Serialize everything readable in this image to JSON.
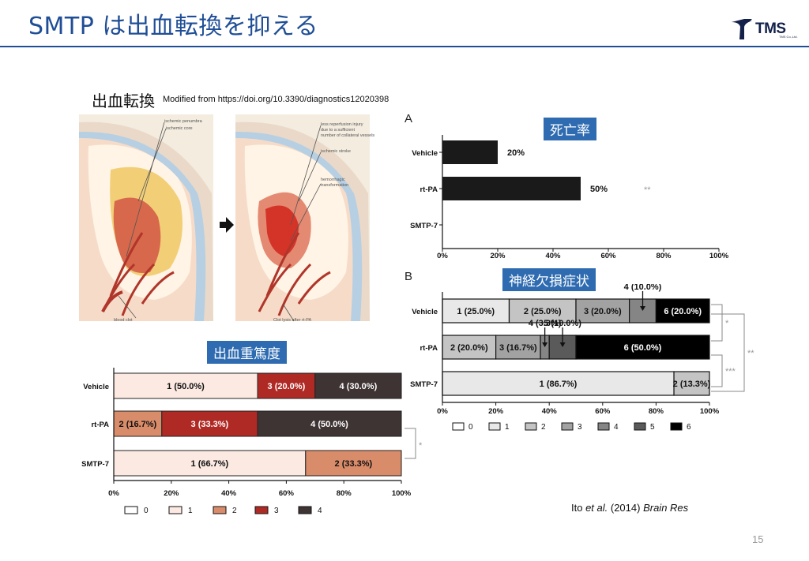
{
  "slide": {
    "title": "SMTP は出血転換を抑える",
    "logo_text": "TMS",
    "logo_subtext": "TMS Co.,Ltd.",
    "page_number": "15"
  },
  "source": {
    "heading": "出血転換",
    "text": "Modified from https://doi.org/10.3390/diagnostics12020398"
  },
  "illustration": {
    "left_labels": [
      "ischemic penumbra",
      "ischemic core",
      "blood clot"
    ],
    "right_labels": [
      "less reperfusion injury",
      "due to a sufficient",
      "number of collateral vessels",
      "ischemic stroke",
      "hemorrhagic",
      "transformation",
      "Clot lysis after rt-PA"
    ]
  },
  "tags": {
    "mortality": "死亡率",
    "neuro": "神経欠損症状",
    "severity": "出血重篤度"
  },
  "panel_letters": {
    "a": "A",
    "b": "B"
  },
  "citation": {
    "authors": "Ito ",
    "etal": "et al.",
    "year": " (2014) ",
    "journal": "Brain Res"
  },
  "chart_data": [
    {
      "id": "mortality",
      "type": "bar",
      "orientation": "horizontal",
      "panel": "A",
      "categories": [
        "Vehicle",
        "rt-PA",
        "SMTP-7"
      ],
      "values": [
        20,
        50,
        0
      ],
      "value_labels": [
        "20%",
        "50%",
        ""
      ],
      "xlim": [
        0,
        100
      ],
      "x_ticks": [
        "0%",
        "20%",
        "40%",
        "60%",
        "80%",
        "100%"
      ],
      "significance": [
        {
          "category": "rt-PA",
          "mark": "**"
        }
      ],
      "color": "#1a1a1a"
    },
    {
      "id": "neurological_deficit",
      "type": "bar",
      "stacked": true,
      "orientation": "horizontal",
      "panel": "B",
      "categories": [
        "Vehicle",
        "rt-PA",
        "SMTP-7"
      ],
      "segments": [
        [
          {
            "score": "1",
            "value": 25.0,
            "label": "1 (25.0%)"
          },
          {
            "score": "2",
            "value": 25.0,
            "label": "2 (25.0%)"
          },
          {
            "score": "3",
            "value": 20.0,
            "label": "3 (20.0%)"
          },
          {
            "score": "4",
            "value": 10.0,
            "label": "4 (10.0%)"
          },
          {
            "score": "6",
            "value": 20.0,
            "label": "6 (20.0%)"
          }
        ],
        [
          {
            "score": "2",
            "value": 20.0,
            "label": "2 (20.0%)"
          },
          {
            "score": "3",
            "value": 16.7,
            "label": "3 (16.7%)"
          },
          {
            "score": "4",
            "value": 3.3,
            "label": "4 (3.3%)"
          },
          {
            "score": "5",
            "value": 10.0,
            "label": "5 (10.0%)"
          },
          {
            "score": "6",
            "value": 50.0,
            "label": "6 (50.0%)"
          }
        ],
        [
          {
            "score": "1",
            "value": 86.7,
            "label": "1 (86.7%)"
          },
          {
            "score": "2",
            "value": 13.3,
            "label": "2 (13.3%)"
          }
        ]
      ],
      "legend": [
        "0",
        "1",
        "2",
        "3",
        "4",
        "5",
        "6"
      ],
      "legend_colors": [
        "#ffffff",
        "#e8e8e8",
        "#c4c4c4",
        "#a2a2a2",
        "#858585",
        "#5a5a5a",
        "#000000"
      ],
      "xlim": [
        0,
        100
      ],
      "x_ticks": [
        "0%",
        "20%",
        "40%",
        "60%",
        "80%",
        "100%"
      ],
      "significance": [
        {
          "between": [
            "Vehicle",
            "rt-PA"
          ],
          "mark": "*"
        },
        {
          "between": [
            "rt-PA",
            "SMTP-7"
          ],
          "mark": "***"
        },
        {
          "between": [
            "Vehicle",
            "SMTP-7"
          ],
          "mark": "**"
        }
      ]
    },
    {
      "id": "hemorrhage_severity",
      "type": "bar",
      "stacked": true,
      "orientation": "horizontal",
      "categories": [
        "Vehicle",
        "rt-PA",
        "SMTP-7"
      ],
      "segments": [
        [
          {
            "score": "1",
            "value": 50.0,
            "label": "1 (50.0%)"
          },
          {
            "score": "3",
            "value": 20.0,
            "label": "3 (20.0%)"
          },
          {
            "score": "4",
            "value": 30.0,
            "label": "4 (30.0%)"
          }
        ],
        [
          {
            "score": "2",
            "value": 16.7,
            "label": "2 (16.7%)"
          },
          {
            "score": "3",
            "value": 33.3,
            "label": "3 (33.3%)"
          },
          {
            "score": "4",
            "value": 50.0,
            "label": "4 (50.0%)"
          }
        ],
        [
          {
            "score": "1",
            "value": 66.7,
            "label": "1 (66.7%)"
          },
          {
            "score": "2",
            "value": 33.3,
            "label": "2 (33.3%)"
          }
        ]
      ],
      "legend": [
        "0",
        "1",
        "2",
        "3",
        "4"
      ],
      "legend_colors": [
        "#ffffff",
        "#fbe9e2",
        "#d98c6a",
        "#b02a25",
        "#3e3433"
      ],
      "xlim": [
        0,
        100
      ],
      "x_ticks": [
        "0%",
        "20%",
        "40%",
        "60%",
        "80%",
        "100%"
      ],
      "significance": [
        {
          "between": [
            "rt-PA",
            "SMTP-7"
          ],
          "mark": "*"
        }
      ]
    }
  ]
}
